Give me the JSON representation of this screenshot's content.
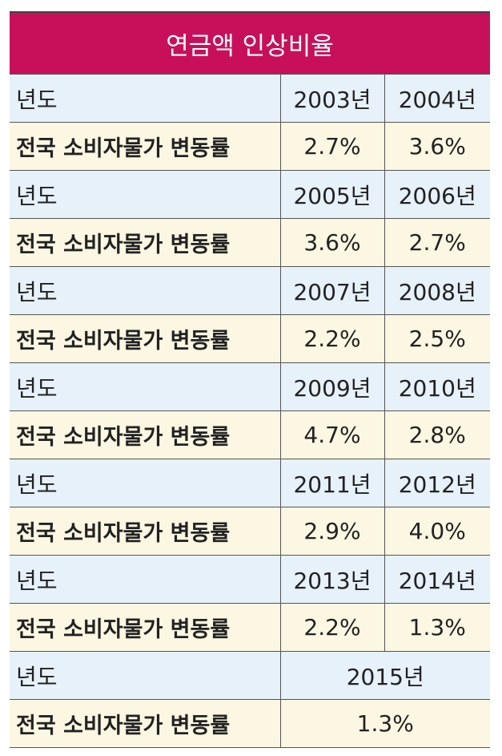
{
  "title": "연금액 인상비율",
  "table": {
    "rows": [
      {
        "label": "년도",
        "values": [
          "2003년",
          "2004년"
        ]
      },
      {
        "label": "전국 소비자물가 변동률",
        "values": [
          "2.7%",
          "3.6%"
        ]
      },
      {
        "label": "년도",
        "values": [
          "2005년",
          "2006년"
        ]
      },
      {
        "label": "전국 소비자물가 변동률",
        "values": [
          "3.6%",
          "2.7%"
        ]
      },
      {
        "label": "년도",
        "values": [
          "2007년",
          "2008년"
        ]
      },
      {
        "label": "전국 소비자물가 변동률",
        "values": [
          "2.2%",
          "2.5%"
        ]
      },
      {
        "label": "년도",
        "values": [
          "2009년",
          "2010년"
        ]
      },
      {
        "label": "전국 소비자물가 변동률",
        "values": [
          "4.7%",
          "2.8%"
        ]
      },
      {
        "label": "년도",
        "values": [
          "2011년",
          "2012년"
        ]
      },
      {
        "label": "전국 소비자물가 변동률",
        "values": [
          "2.9%",
          "4.0%"
        ]
      },
      {
        "label": "년도",
        "values": [
          "2013년",
          "2014년"
        ]
      },
      {
        "label": "전국 소비자물가 변동률",
        "values": [
          "2.2%",
          "1.3%"
        ]
      },
      {
        "label": "년도",
        "values": [
          "2015년"
        ]
      },
      {
        "label": "전국 소비자물가 변동률",
        "values": [
          "1.3%"
        ]
      }
    ]
  }
}
